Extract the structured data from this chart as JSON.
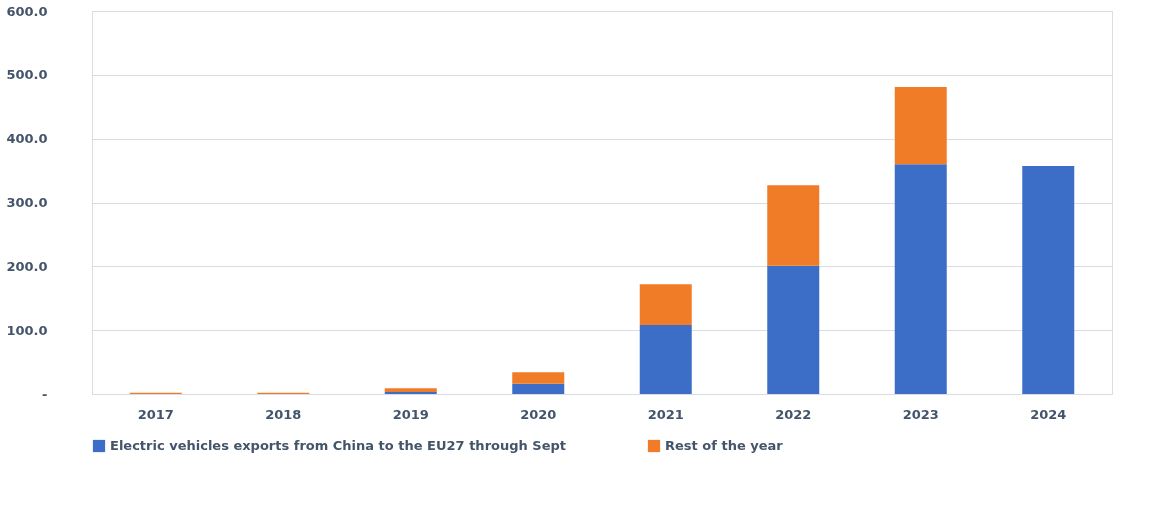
{
  "chart_data": {
    "type": "bar",
    "stacked": true,
    "categories": [
      "2017",
      "2018",
      "2019",
      "2020",
      "2021",
      "2022",
      "2023",
      "2024"
    ],
    "series": [
      {
        "name": "Electric vehicles exports from China to the EU27 through Sept",
        "color": "#3c6ec8",
        "values": [
          null,
          null,
          3,
          16,
          108,
          201,
          360,
          357
        ]
      },
      {
        "name": "Rest of the year",
        "color": "#f07c28",
        "values": [
          2,
          2,
          6,
          18,
          64,
          126,
          121,
          null
        ]
      }
    ],
    "ylim": [
      0,
      600
    ],
    "yticks": [
      {
        "value": 0,
        "label": "-"
      },
      {
        "value": 100,
        "label": "100.0"
      },
      {
        "value": 200,
        "label": "200.0"
      },
      {
        "value": 300,
        "label": "300.0"
      },
      {
        "value": 400,
        "label": "400.0"
      },
      {
        "value": 500,
        "label": "500.0"
      },
      {
        "value": 600,
        "label": "600.0"
      }
    ],
    "grid": "y",
    "legend": "bottom"
  }
}
